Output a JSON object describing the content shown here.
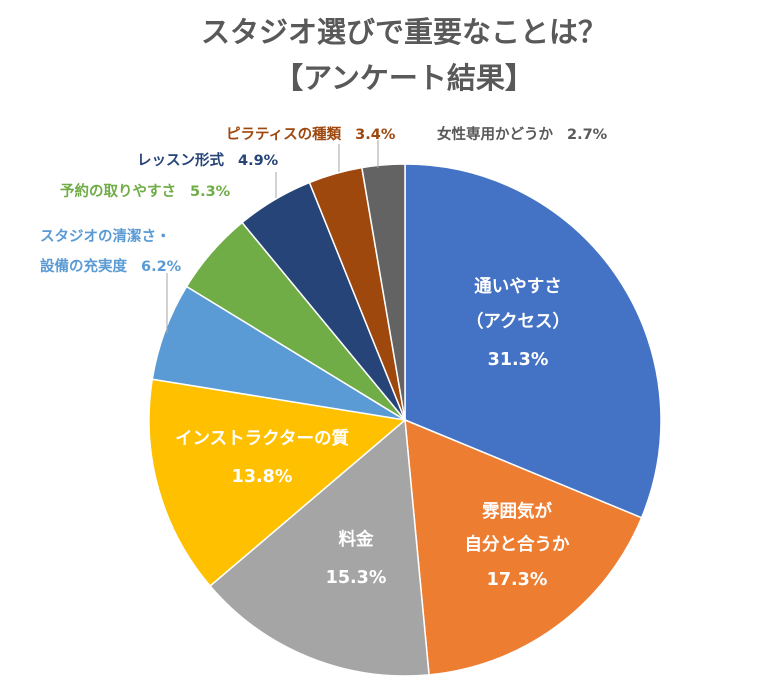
{
  "chart_data": {
    "type": "pie",
    "title": [
      "スタジオ選びで重要なことは？",
      "【アンケート結果】"
    ],
    "start": "12 o'clock",
    "direction": "clockwise",
    "slices": [
      {
        "label": [
          "通いやすさ",
          "（アクセス）"
        ],
        "value": 31.3,
        "value_text": "31.3%",
        "color": "#4472C4",
        "label_position": "inside"
      },
      {
        "label": [
          "雰囲気が",
          "自分と合うか"
        ],
        "value": 17.3,
        "value_text": "17.3%",
        "color": "#ED7D31",
        "label_position": "inside"
      },
      {
        "label": [
          "料金"
        ],
        "value": 15.3,
        "value_text": "15.3%",
        "color": "#A5A5A5",
        "label_position": "inside"
      },
      {
        "label": [
          "インストラクターの質"
        ],
        "value": 13.8,
        "value_text": "13.8%",
        "color": "#FFC000",
        "label_position": "inside"
      },
      {
        "label": [
          "スタジオの清潔さ・",
          "設備の充実度"
        ],
        "value": 6.2,
        "value_text": "6.2%",
        "color": "#5B9BD5",
        "label_position": "outside"
      },
      {
        "label": [
          "予約の取りやすさ"
        ],
        "value": 5.3,
        "value_text": "5.3%",
        "color": "#70AD47",
        "label_position": "outside"
      },
      {
        "label": [
          "レッスン形式"
        ],
        "value": 4.9,
        "value_text": "4.9%",
        "color": "#264478",
        "label_position": "outside"
      },
      {
        "label": [
          "ピラティスの種類"
        ],
        "value": 3.4,
        "value_text": "3.4%",
        "color": "#9E480E",
        "label_position": "outside"
      },
      {
        "label": [
          "女性専用かどうか"
        ],
        "value": 2.7,
        "value_text": "2.7%",
        "color": "#636363",
        "label_position": "outside"
      }
    ],
    "outside_label_colors": [
      "#5B9BD5",
      "#70AD47",
      "#264478",
      "#9E480E",
      "#595959"
    ],
    "slice_border_color": "#ffffff"
  }
}
